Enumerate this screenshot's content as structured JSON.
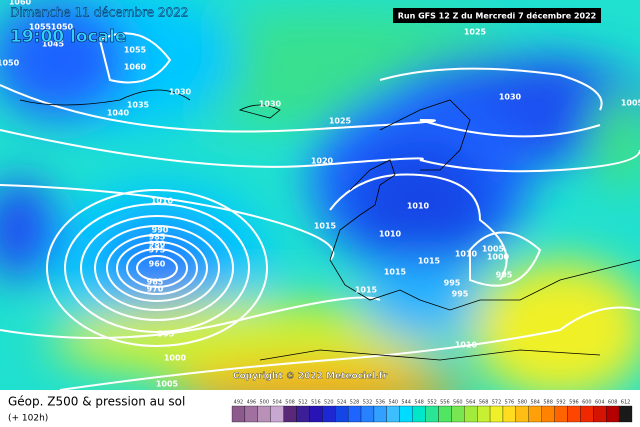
{
  "header": {
    "date": "Dimanche 11 décembre 2022",
    "time": "19:00 locale",
    "run": "Run GFS 12 Z du Mercredi 7 décembre 2022"
  },
  "copyright": "Copyright © 2022 Meteociel.fr",
  "footer": {
    "title": "Géop. Z500 & pression au sol",
    "lead": "(+ 102h)"
  },
  "isobar_labels": [
    1060,
    1055,
    1050,
    1045,
    1050,
    1055,
    1060,
    1035,
    1040,
    1030,
    1030,
    1025,
    1025,
    1030,
    1020,
    1010,
    1015,
    1010,
    1010,
    1015,
    1015,
    1010,
    1005,
    1000,
    995,
    995,
    995,
    1015,
    1010,
    990,
    985,
    980,
    975,
    960,
    965,
    970,
    995,
    1000,
    1005,
    1005
  ],
  "scale": {
    "values": [
      492,
      496,
      500,
      504,
      508,
      512,
      516,
      520,
      524,
      528,
      532,
      536,
      540,
      544,
      548,
      552,
      556,
      560,
      564,
      568,
      572,
      576,
      580,
      584,
      588,
      592,
      596,
      600,
      604,
      608,
      612
    ],
    "colors": [
      "#8c5a8c",
      "#a070a0",
      "#b890b8",
      "#c8a8d0",
      "#5a2878",
      "#3c1e96",
      "#2814b4",
      "#1e28d2",
      "#1446e6",
      "#1e64ff",
      "#2882ff",
      "#32a0ff",
      "#3cbeff",
      "#00dcff",
      "#00e6c8",
      "#28e696",
      "#50e664",
      "#78e650",
      "#a0eb3c",
      "#c8f032",
      "#f0f028",
      "#ffdc1e",
      "#ffbe14",
      "#ffa00a",
      "#ff8200",
      "#ff6400",
      "#ff4600",
      "#f02800",
      "#d21400",
      "#b40000",
      "#1a1a1a"
    ]
  }
}
